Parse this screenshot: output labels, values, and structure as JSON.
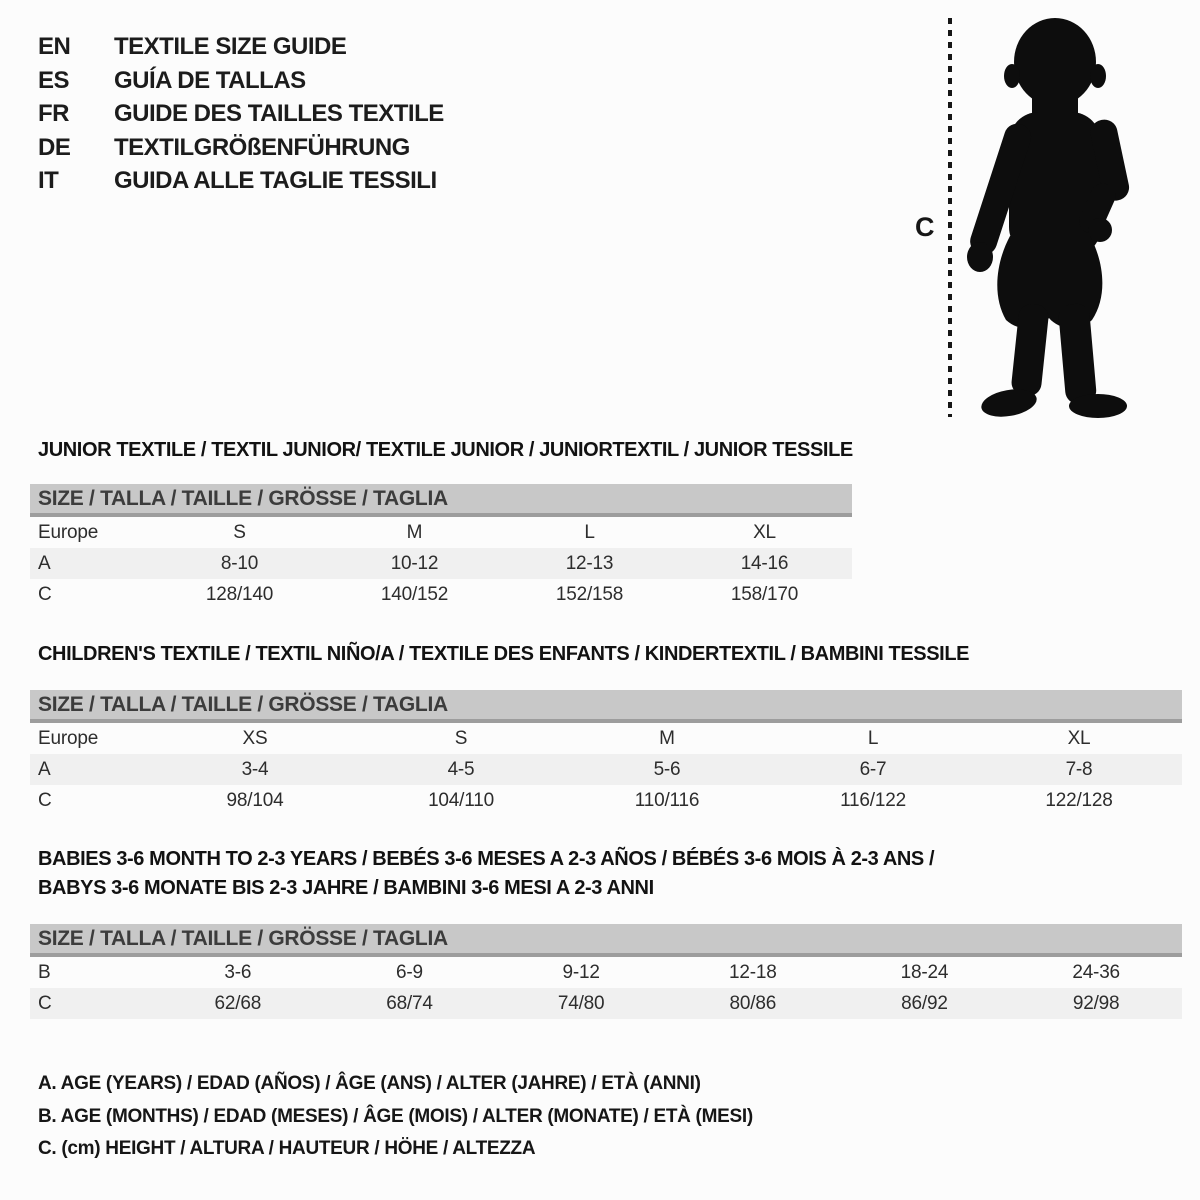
{
  "header": {
    "languages": [
      {
        "code": "EN",
        "title": "TEXTILE SIZE GUIDE"
      },
      {
        "code": "ES",
        "title": "GUÍA DE TALLAS"
      },
      {
        "code": "FR",
        "title": "GUIDE DES TAILLES TEXTILE"
      },
      {
        "code": "DE",
        "title": "TEXTILGRÖßENFÜHRUNG"
      },
      {
        "code": "IT",
        "title": "GUIDA ALLE TAGLIE TESSILI"
      }
    ]
  },
  "figure": {
    "icon": "toddler-silhouette",
    "measure_label": "C"
  },
  "sections": [
    {
      "id": "junior",
      "title_lines": [
        "JUNIOR TEXTILE / TEXTIL JUNIOR/ TEXTILE JUNIOR / JUNIORTEXTIL / JUNIOR TESSILE"
      ],
      "size_band": "SIZE / TALLA / TAILLE / GRÖSSE / TAGLIA",
      "columns": {
        "label": "Europe",
        "sizes": [
          "S",
          "M",
          "L",
          "XL"
        ]
      },
      "rows": [
        {
          "label": "A",
          "cells": [
            "8-10",
            "10-12",
            "12-13",
            "14-16"
          ],
          "shaded": true
        },
        {
          "label": "C",
          "cells": [
            "128/140",
            "140/152",
            "152/158",
            "158/170"
          ],
          "shaded": false
        }
      ]
    },
    {
      "id": "children",
      "title_lines": [
        "CHILDREN'S TEXTILE / TEXTIL NIÑO/A / TEXTILE DES ENFANTS / KINDERTEXTIL / BAMBINI TESSILE"
      ],
      "size_band": "SIZE / TALLA / TAILLE / GRÖSSE / TAGLIA",
      "columns": {
        "label": "Europe",
        "sizes": [
          "XS",
          "S",
          "M",
          "L",
          "XL"
        ]
      },
      "rows": [
        {
          "label": "A",
          "cells": [
            "3-4",
            "4-5",
            "5-6",
            "6-7",
            "7-8"
          ],
          "shaded": true
        },
        {
          "label": "C",
          "cells": [
            "98/104",
            "104/110",
            "110/116",
            "116/122",
            "122/128"
          ],
          "shaded": false
        }
      ]
    },
    {
      "id": "babies",
      "title_lines": [
        "BABIES 3-6 MONTH TO 2-3 YEARS / BEBÉS 3-6 MESES A 2-3 AÑOS / BÉBÉS 3-6 MOIS À 2-3 ANS /",
        "BABYS 3-6 MONATE BIS 2-3 JAHRE / BAMBINI 3-6 MESI A 2-3 ANNI"
      ],
      "size_band": "SIZE / TALLA / TAILLE / GRÖSSE / TAGLIA",
      "columns": null,
      "rows": [
        {
          "label": "B",
          "cells": [
            "3-6",
            "6-9",
            "9-12",
            "12-18",
            "18-24",
            "24-36"
          ],
          "shaded": false
        },
        {
          "label": "C",
          "cells": [
            "62/68",
            "68/74",
            "74/80",
            "80/86",
            "86/92",
            "92/98"
          ],
          "shaded": true
        }
      ]
    }
  ],
  "footnotes": [
    "A. AGE (YEARS) / EDAD (AÑOS) / ÂGE (ANS) / ALTER (JAHRE) / ETÀ (ANNI)",
    "B. AGE (MONTHS) / EDAD (MESES) / ÂGE (MOIS) / ALTER (MONATE) / ETÀ (MESI)",
    "C. (cm) HEIGHT / ALTURA / HAUTEUR / HÖHE / ALTEZZA"
  ],
  "colors": {
    "band": "#c8c8c8",
    "band_edge": "#9d9d9d",
    "shaded_row": "#f0f0f0",
    "silhouette": "#0d0d0d"
  }
}
